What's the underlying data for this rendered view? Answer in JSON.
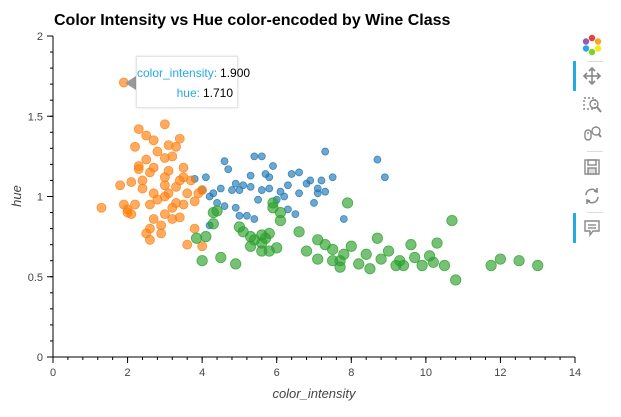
{
  "chart_data": {
    "type": "scatter",
    "title": "Color Intensity vs Hue color-encoded by Wine Class",
    "xlabel": "color_intensity",
    "ylabel": "hue",
    "xlim": [
      0,
      14
    ],
    "ylim": [
      0,
      2
    ],
    "x_ticks": [
      0,
      2,
      4,
      6,
      8,
      10,
      12,
      14
    ],
    "y_ticks": [
      0,
      0.5,
      1,
      1.5,
      2
    ],
    "x_tick_labels": [
      "0",
      "2",
      "4",
      "6",
      "8",
      "10",
      "12",
      "14"
    ],
    "y_tick_labels": [
      "0",
      "0.5",
      "1",
      "1.5",
      "2"
    ],
    "grid": false,
    "series": [
      {
        "color": "#1f77b4",
        "points": [
          [
            3.8,
            1.11
          ],
          [
            4.1,
            1.12
          ],
          [
            4.3,
            1.02
          ],
          [
            4.5,
            1.05
          ],
          [
            4.8,
            1.04
          ],
          [
            5.0,
            1.04
          ],
          [
            5.3,
            1.06
          ],
          [
            5.6,
            1.04
          ],
          [
            5.8,
            1.05
          ],
          [
            6.1,
            1.03
          ],
          [
            6.3,
            1.07
          ],
          [
            6.6,
            1.02
          ],
          [
            7.1,
            1.02
          ],
          [
            7.3,
            1.03
          ],
          [
            7.5,
            1.12
          ],
          [
            6.8,
            1.08
          ],
          [
            5.4,
            1.25
          ],
          [
            5.6,
            1.25
          ],
          [
            7.3,
            1.28
          ],
          [
            4.6,
            1.22
          ],
          [
            8.7,
            1.23
          ],
          [
            8.9,
            1.12
          ],
          [
            5.9,
            1.19
          ],
          [
            6.4,
            1.14
          ],
          [
            6.9,
            1.1
          ],
          [
            7.2,
            1.1
          ],
          [
            4.7,
            1.17
          ],
          [
            5.3,
            1.13
          ],
          [
            5.7,
            1.14
          ],
          [
            4.2,
            1.0
          ],
          [
            4.4,
            0.96
          ],
          [
            4.6,
            0.94
          ],
          [
            4.9,
            0.93
          ],
          [
            5.2,
            0.88
          ],
          [
            5.4,
            0.86
          ],
          [
            6.3,
            0.92
          ],
          [
            6.5,
            0.89
          ],
          [
            7.8,
            0.86
          ],
          [
            7.0,
            0.96
          ],
          [
            5.1,
            1.07
          ],
          [
            5.8,
            1.12
          ],
          [
            6.2,
            1.0
          ],
          [
            4.0,
            1.04
          ],
          [
            4.9,
            1.08
          ],
          [
            6.0,
            0.98
          ],
          [
            4.2,
            0.82
          ],
          [
            5.0,
            0.88
          ],
          [
            5.5,
            0.98
          ],
          [
            6.6,
            1.15
          ],
          [
            7.1,
            1.05
          ]
        ]
      },
      {
        "color": "#ff7f0e",
        "points": [
          [
            1.9,
            1.71
          ],
          [
            2.5,
            1.38
          ],
          [
            2.7,
            1.35
          ],
          [
            2.3,
            1.42
          ],
          [
            3.0,
            1.45
          ],
          [
            3.3,
            1.31
          ],
          [
            3.4,
            1.36
          ],
          [
            3.1,
            1.32
          ],
          [
            2.2,
            1.31
          ],
          [
            2.5,
            1.23
          ],
          [
            2.8,
            1.28
          ],
          [
            3.2,
            1.25
          ],
          [
            2.7,
            1.18
          ],
          [
            3.0,
            1.24
          ],
          [
            3.5,
            1.18
          ],
          [
            3.7,
            1.1
          ],
          [
            3.4,
            1.1
          ],
          [
            3.1,
            1.16
          ],
          [
            2.6,
            1.15
          ],
          [
            2.3,
            1.19
          ],
          [
            2.1,
            1.09
          ],
          [
            2.4,
            1.05
          ],
          [
            2.7,
            1.02
          ],
          [
            3.0,
            1.07
          ],
          [
            3.3,
            1.06
          ],
          [
            3.6,
            1.02
          ],
          [
            3.9,
            1.02
          ],
          [
            4.0,
            1.04
          ],
          [
            3.8,
            0.97
          ],
          [
            3.3,
            0.96
          ],
          [
            3.5,
            0.95
          ],
          [
            3.0,
            0.89
          ],
          [
            2.7,
            0.86
          ],
          [
            3.2,
            0.86
          ],
          [
            3.4,
            0.87
          ],
          [
            2.9,
            0.82
          ],
          [
            2.6,
            0.8
          ],
          [
            2.5,
            0.77
          ],
          [
            2.9,
            0.77
          ],
          [
            3.6,
            0.7
          ],
          [
            2.6,
            0.73
          ],
          [
            3.8,
            0.8
          ],
          [
            1.3,
            0.93
          ],
          [
            1.9,
            0.95
          ],
          [
            2.0,
            0.92
          ],
          [
            2.1,
            0.89
          ],
          [
            1.8,
            1.07
          ],
          [
            2.3,
            1.17
          ],
          [
            3.0,
            1.0
          ],
          [
            2.6,
            0.95
          ],
          [
            3.2,
            0.93
          ],
          [
            3.5,
            1.12
          ],
          [
            3.1,
            1.02
          ],
          [
            2.4,
            1.1
          ],
          [
            2.8,
            0.98
          ],
          [
            3.0,
            1.12
          ],
          [
            4.0,
            0.69
          ],
          [
            2.0,
            0.9
          ],
          [
            2.2,
            0.95
          ]
        ]
      },
      {
        "color": "#2ca02c",
        "points": [
          [
            3.85,
            0.74
          ],
          [
            4.1,
            0.75
          ],
          [
            4.3,
            0.9
          ],
          [
            4.4,
            0.91
          ],
          [
            5.1,
            0.78
          ],
          [
            5.4,
            0.73
          ],
          [
            5.6,
            0.76
          ],
          [
            5.7,
            0.74
          ],
          [
            5.8,
            0.77
          ],
          [
            6.1,
            0.85
          ],
          [
            6.6,
            0.78
          ],
          [
            7.1,
            0.73
          ],
          [
            7.3,
            0.7
          ],
          [
            7.5,
            0.67
          ],
          [
            7.7,
            0.56
          ],
          [
            7.7,
            0.6
          ],
          [
            7.8,
            0.64
          ],
          [
            8.2,
            0.58
          ],
          [
            8.4,
            0.64
          ],
          [
            8.5,
            0.55
          ],
          [
            8.7,
            0.74
          ],
          [
            8.8,
            0.61
          ],
          [
            9.2,
            0.57
          ],
          [
            9.4,
            0.57
          ],
          [
            9.6,
            0.7
          ],
          [
            9.7,
            0.62
          ],
          [
            9.9,
            0.57
          ],
          [
            10.2,
            0.59
          ],
          [
            10.3,
            0.71
          ],
          [
            10.5,
            0.57
          ],
          [
            10.7,
            0.85
          ],
          [
            10.8,
            0.48
          ],
          [
            11.75,
            0.57
          ],
          [
            12.0,
            0.61
          ],
          [
            13.0,
            0.57
          ],
          [
            4.0,
            0.6
          ],
          [
            4.9,
            0.58
          ],
          [
            5.3,
            0.69
          ],
          [
            5.6,
            0.66
          ],
          [
            5.9,
            0.96
          ],
          [
            6.1,
            0.9
          ],
          [
            7.1,
            0.61
          ],
          [
            5.8,
            0.66
          ],
          [
            5.9,
            0.93
          ],
          [
            7.9,
            0.96
          ],
          [
            5.6,
            0.71
          ],
          [
            4.5,
            0.62
          ],
          [
            5.3,
            0.75
          ],
          [
            6.0,
            0.68
          ],
          [
            7.5,
            0.6
          ],
          [
            9.3,
            0.6
          ],
          [
            10.1,
            0.63
          ],
          [
            12.5,
            0.6
          ],
          [
            4.3,
            0.83
          ],
          [
            5.0,
            0.81
          ],
          [
            6.8,
            0.66
          ],
          [
            8.0,
            0.69
          ],
          [
            9.0,
            0.66
          ]
        ]
      }
    ]
  },
  "tooltip": {
    "rows": [
      {
        "key": "color_intensity:",
        "value": "1.900"
      },
      {
        "key": "hue:",
        "value": "1.710"
      }
    ]
  },
  "toolbar": {
    "tools": [
      {
        "icon": "bokeh-logo-icon",
        "active": false
      },
      {
        "icon": "pan-icon",
        "active": true
      },
      {
        "icon": "box-zoom-icon",
        "active": false
      },
      {
        "icon": "wheel-zoom-icon",
        "active": false
      },
      {
        "icon": "save-icon",
        "active": false
      },
      {
        "icon": "reset-icon",
        "active": false
      },
      {
        "icon": "hover-icon",
        "active": true
      }
    ]
  }
}
